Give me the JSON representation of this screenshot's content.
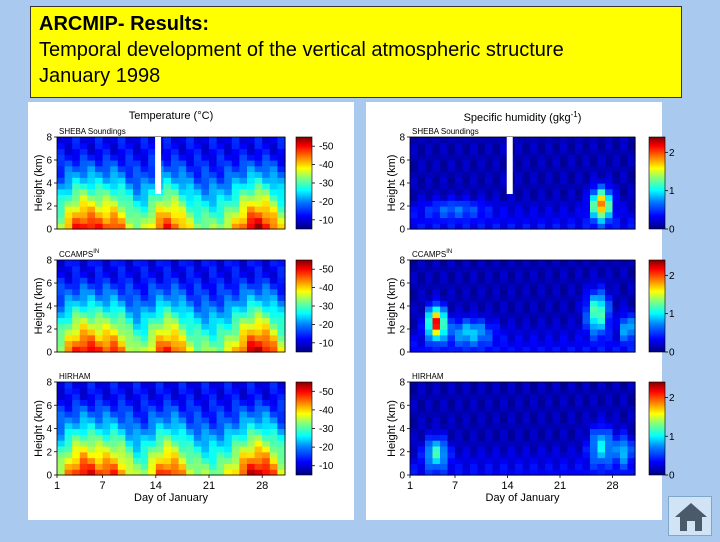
{
  "title": {
    "line1": "ARCMIP- Results:",
    "line2": "Temporal development of the vertical atmospheric structure",
    "line3": "January 1998"
  },
  "colors": {
    "background": "#a9c9ee",
    "title_box": "#ffff00",
    "colormap": [
      "#00007f",
      "#0000ff",
      "#007fff",
      "#00ffff",
      "#7fff7f",
      "#ffff00",
      "#ff7f00",
      "#ff0000",
      "#7f0000"
    ]
  },
  "chart_data": [
    {
      "type": "heatmap",
      "column_title": "Temperature (°C)",
      "xlabel": "Day of January",
      "ylabel": "Height (km)",
      "xlim": [
        1,
        31
      ],
      "ylim": [
        0,
        8
      ],
      "xticks": [
        1,
        7,
        14,
        21,
        28
      ],
      "yticks": [
        0,
        2,
        4,
        6,
        8
      ],
      "colorbar_ticks": [
        -10,
        -20,
        -30,
        -40,
        -50
      ],
      "series": [
        {
          "name": "SHEBA Soundings",
          "superscript": ""
        },
        {
          "name": "CCAMPS",
          "superscript": "IN"
        },
        {
          "name": "HIRHAM",
          "superscript": ""
        }
      ]
    },
    {
      "type": "heatmap",
      "column_title_prefix": "Specific humidity (gkg",
      "column_title_sup": "-1",
      "column_title_suffix": ")",
      "xlabel": "Day of January",
      "ylabel": "Height (km)",
      "xlim": [
        1,
        31
      ],
      "ylim": [
        0,
        8
      ],
      "xticks": [
        1,
        7,
        14,
        21,
        28
      ],
      "yticks": [
        0,
        2,
        4,
        6,
        8
      ],
      "colorbar_ticks": [
        2,
        1,
        0
      ],
      "series": [
        {
          "name": "SHEBA Soundings",
          "superscript": ""
        },
        {
          "name": "CCAMPS",
          "superscript": "IN"
        },
        {
          "name": "HIRHAM",
          "superscript": ""
        }
      ]
    }
  ],
  "navigation": {
    "home_icon": "home-icon"
  }
}
